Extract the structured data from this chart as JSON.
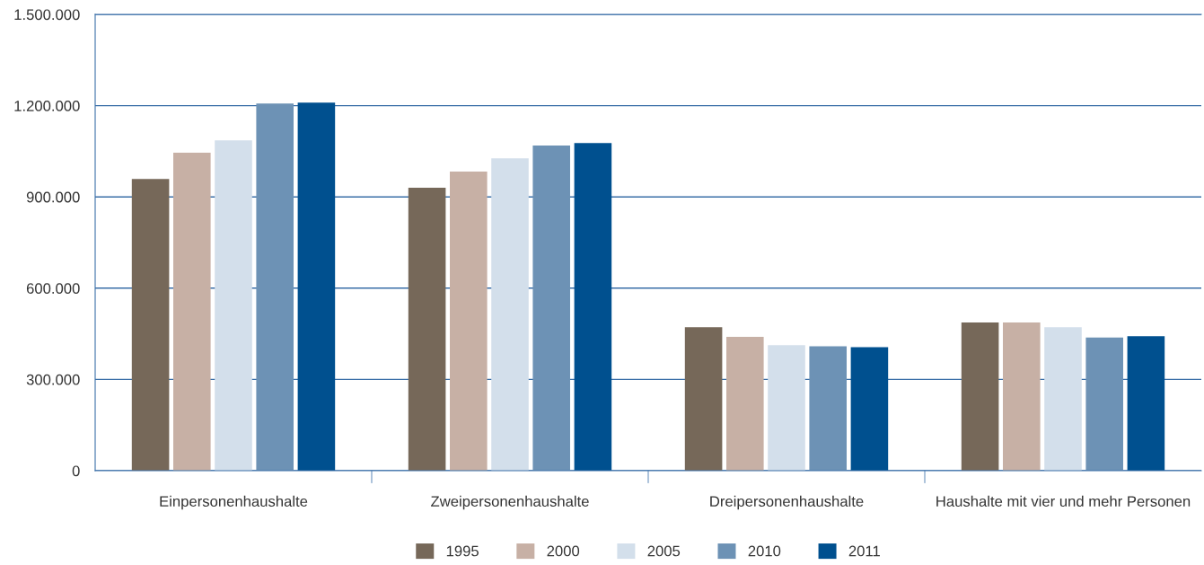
{
  "chart_data": {
    "type": "bar",
    "categories": [
      "Einpersonenhaushalte",
      "Zweipersonenhaushalte",
      "Dreipersonenhaushalte",
      "Haushalte mit vier und mehr Personen"
    ],
    "series": [
      {
        "name": "1995",
        "color": "#766859",
        "values": [
          959000,
          930000,
          472000,
          487000
        ]
      },
      {
        "name": "2000",
        "color": "#c7b0a5",
        "values": [
          1045000,
          983000,
          440000,
          487000
        ]
      },
      {
        "name": "2005",
        "color": "#d3dfeb",
        "values": [
          1086000,
          1027000,
          413000,
          472000
        ]
      },
      {
        "name": "2010",
        "color": "#6d92b5",
        "values": [
          1207000,
          1069000,
          409000,
          438000
        ]
      },
      {
        "name": "2011",
        "color": "#00508f",
        "values": [
          1210000,
          1077000,
          406000,
          442000
        ]
      }
    ],
    "ylim": [
      0,
      1500000
    ],
    "yticks": [
      0,
      {
        "value": 300000,
        "label": "300.000"
      },
      {
        "value": 600000,
        "label": "600.000"
      },
      {
        "value": 900000,
        "label": "900.000"
      },
      {
        "value": 1200000,
        "label": "1.200.000"
      },
      {
        "value": 1500000,
        "label": "1.500.000"
      }
    ],
    "grid": "y",
    "legend": "bottom"
  }
}
